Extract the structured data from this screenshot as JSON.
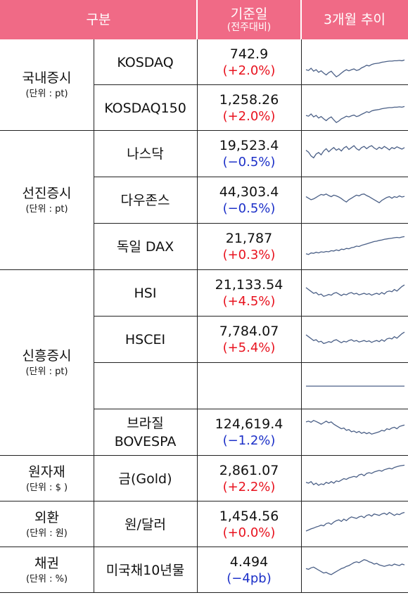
{
  "header": {
    "category": "구분",
    "base_date": "기준일",
    "base_date_sub": "(전주대비)",
    "trend": "3개월 추이"
  },
  "colors": {
    "header_bg": "#f06a86",
    "up": "#e8121e",
    "down": "#1c30c8",
    "line": "#4a5f86"
  },
  "groups": [
    {
      "name": "국내증시",
      "unit": "(단위 : pt)"
    },
    {
      "name": "선진증시",
      "unit": "(단위 : pt)"
    },
    {
      "name": "신흥증시",
      "unit": "(단위 : pt)"
    },
    {
      "name": "원자재",
      "unit": "(단위 : $ )"
    },
    {
      "name": "외환",
      "unit": "(단위 : 원)"
    },
    {
      "name": "채권",
      "unit": "(단위 : %)"
    }
  ],
  "rows": [
    {
      "name": "KOSDAQ",
      "value": "742.9",
      "change": "(+2.0%)",
      "trend": "up",
      "spark": [
        70,
        72,
        66,
        74,
        70,
        77,
        73,
        79,
        84,
        78,
        74,
        82,
        89,
        85,
        79,
        74,
        70,
        73,
        70,
        68,
        72,
        70,
        65,
        62,
        58,
        60,
        56,
        54,
        53,
        52,
        50,
        49,
        48,
        47,
        47,
        46,
        46,
        45,
        46,
        44
      ]
    },
    {
      "name": "KOSDAQ150",
      "value": "1,258.26",
      "change": "(+2.0%)",
      "trend": "up",
      "spark": [
        70,
        72,
        66,
        74,
        70,
        77,
        73,
        79,
        84,
        78,
        74,
        82,
        89,
        85,
        79,
        76,
        72,
        74,
        71,
        69,
        73,
        71,
        67,
        64,
        60,
        62,
        58,
        56,
        55,
        54,
        52,
        51,
        50,
        49,
        49,
        48,
        48,
        47,
        48,
        46
      ]
    },
    {
      "name": "나스닥",
      "value": "19,523.4",
      "change": "(−0.5%)",
      "trend": "down",
      "spark": [
        40,
        45,
        55,
        60,
        50,
        46,
        52,
        42,
        36,
        44,
        38,
        33,
        40,
        36,
        42,
        34,
        30,
        38,
        33,
        28,
        36,
        40,
        33,
        30,
        36,
        31,
        28,
        34,
        38,
        32,
        36,
        30,
        34,
        39,
        33,
        36,
        31,
        34,
        37,
        33
      ]
    },
    {
      "name": "다우존스",
      "value": "44,303.4",
      "change": "(−0.5%)",
      "trend": "down",
      "spark": [
        40,
        44,
        48,
        46,
        42,
        38,
        34,
        36,
        33,
        37,
        40,
        36,
        38,
        41,
        45,
        50,
        54,
        48,
        44,
        40,
        36,
        38,
        34,
        33,
        37,
        40,
        44,
        48,
        52,
        56,
        50,
        46,
        42,
        40,
        44,
        40,
        42,
        38,
        41,
        39
      ]
    },
    {
      "name": "독일 DAX",
      "value": "21,787",
      "change": "(+0.3%)",
      "trend": "up",
      "spark": [
        68,
        70,
        66,
        67,
        64,
        66,
        63,
        64,
        62,
        63,
        60,
        61,
        58,
        60,
        56,
        57,
        54,
        55,
        52,
        51,
        48,
        49,
        46,
        44,
        42,
        40,
        38,
        36,
        35,
        33,
        32,
        30,
        29,
        28,
        27,
        26,
        25,
        26,
        24,
        23
      ]
    },
    {
      "name": "HSI",
      "value": "21,133.54",
      "change": "(+4.5%)",
      "trend": "up",
      "spark": [
        35,
        40,
        45,
        50,
        48,
        54,
        52,
        58,
        56,
        53,
        55,
        50,
        48,
        52,
        56,
        52,
        54,
        50,
        48,
        52,
        50,
        54,
        52,
        50,
        53,
        51,
        55,
        52,
        50,
        53,
        48,
        52,
        46,
        44,
        46,
        40,
        44,
        38,
        32,
        28
      ]
    },
    {
      "name": "HSCEI",
      "value": "7,784.07",
      "change": "(+5.4%)",
      "trend": "up",
      "spark": [
        37,
        42,
        47,
        52,
        50,
        56,
        54,
        60,
        58,
        55,
        57,
        52,
        50,
        54,
        58,
        54,
        56,
        52,
        50,
        54,
        52,
        56,
        54,
        52,
        55,
        53,
        57,
        54,
        52,
        55,
        50,
        54,
        48,
        46,
        48,
        42,
        46,
        40,
        34,
        30
      ]
    },
    {
      "name": "",
      "value": "",
      "change": "",
      "trend": "",
      "spark": [
        50,
        50
      ]
    },
    {
      "name": "브라질\nBOVESPA",
      "value": "124,619.4",
      "change": "(−1.2%)",
      "trend": "down",
      "spark": [
        22,
        20,
        23,
        18,
        21,
        24,
        28,
        24,
        20,
        24,
        22,
        28,
        32,
        36,
        40,
        38,
        44,
        42,
        48,
        46,
        50,
        47,
        52,
        49,
        53,
        50,
        54,
        52,
        50,
        48,
        44,
        46,
        40,
        42,
        38,
        36,
        40,
        34,
        32,
        30
      ]
    },
    {
      "name": "금(Gold)",
      "value": "2,861.07",
      "change": "(+2.2%)",
      "trend": "up",
      "spark": [
        60,
        62,
        58,
        66,
        62,
        68,
        64,
        66,
        60,
        63,
        58,
        62,
        56,
        58,
        54,
        50,
        52,
        48,
        46,
        44,
        46,
        40,
        38,
        42,
        36,
        34,
        36,
        32,
        30,
        28,
        30,
        26,
        24,
        22,
        24,
        20,
        18,
        16,
        15,
        14
      ]
    },
    {
      "name": "원/달러",
      "value": "1,454.56",
      "change": "(+0.0%)",
      "trend": "up",
      "spark": [
        68,
        65,
        62,
        60,
        57,
        55,
        52,
        54,
        48,
        46,
        50,
        44,
        40,
        38,
        42,
        36,
        40,
        34,
        30,
        32,
        34,
        30,
        28,
        32,
        26,
        24,
        28,
        22,
        24,
        26,
        22,
        20,
        24,
        18,
        22,
        26,
        22,
        24,
        20,
        18
      ]
    },
    {
      "name": "미국채10년물",
      "value": "4.494",
      "change": "(−4pb)",
      "trend": "down",
      "spark": [
        46,
        48,
        44,
        42,
        46,
        50,
        54,
        58,
        56,
        60,
        62,
        58,
        54,
        50,
        46,
        44,
        40,
        38,
        34,
        30,
        28,
        30,
        26,
        22,
        24,
        28,
        30,
        34,
        32,
        36,
        38,
        40,
        38,
        36,
        38,
        34,
        36,
        38,
        34,
        36
      ]
    }
  ]
}
